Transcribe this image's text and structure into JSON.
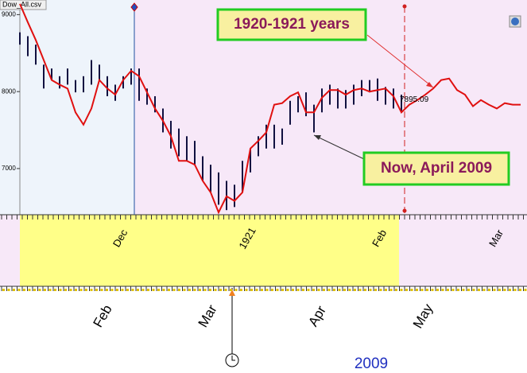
{
  "file_label": "Dow_All.csv",
  "chart_data": {
    "type": "line",
    "annotations": [
      "1920-1921 years",
      "Now, April 2009"
    ],
    "last_price": 7895.09,
    "top_axis_labels": [
      "Dec",
      "1921",
      "Feb",
      "Mar"
    ],
    "bottom_axis_labels": [
      "Feb",
      "Mar",
      "Apr",
      "May"
    ],
    "bottom_axis_year": "2009",
    "ylim": [
      6400,
      9190
    ],
    "yticks": [
      7000,
      8000,
      9000
    ],
    "categories": [
      null,
      null,
      null,
      null,
      null,
      null,
      null,
      null,
      null,
      null,
      null,
      null,
      null,
      null,
      null,
      null,
      null,
      null,
      null,
      null,
      null,
      null,
      null,
      null,
      null,
      null,
      null,
      null,
      null,
      null,
      null,
      null,
      null,
      null,
      null,
      null,
      null,
      null,
      null,
      null,
      null,
      null,
      null,
      null,
      null,
      null,
      null,
      null,
      null,
      null,
      null,
      null,
      null,
      null,
      null,
      null,
      null,
      null,
      null,
      null,
      null,
      null,
      null,
      null
    ],
    "series": [
      {
        "color": "#e01010",
        "values": [
          9140,
          8900,
          8670,
          8410,
          8150,
          8090,
          8040,
          7730,
          7570,
          7780,
          8150,
          8040,
          7960,
          8150,
          8270,
          8200,
          7990,
          7780,
          7620,
          7420,
          7100,
          7100,
          7050,
          6840,
          6690,
          6430,
          6640,
          6580,
          6690,
          7260,
          7360,
          7470,
          7830,
          7850,
          7940,
          7990,
          7730,
          7730,
          7920,
          8020,
          8020,
          7960,
          8020,
          8040,
          8000,
          8020,
          8040,
          7940,
          7730,
          7830,
          7890,
          7960,
          8040,
          8150,
          8170,
          8020,
          7960,
          7810,
          7890,
          7830,
          7780,
          7850,
          7830,
          7830
        ]
      },
      {
        "color": "#101040",
        "high": [
          8770,
          8720,
          8610,
          8350,
          8300,
          8200,
          8300,
          8150,
          8200,
          8410,
          8350,
          8200,
          8090,
          8200,
          8300,
          8300,
          8040,
          7940,
          7780,
          7620,
          7520,
          7420,
          7360,
          7160,
          7050,
          6950,
          6840,
          6790,
          7100,
          7260,
          7420,
          7570,
          7570,
          7520,
          7880,
          7940,
          7990,
          7830,
          8040,
          8090,
          8040,
          8020,
          8090,
          8150,
          8150,
          8170,
          8060,
          8040,
          7960,
          null,
          null,
          null,
          null,
          null,
          null,
          null,
          null,
          null,
          null,
          null,
          null,
          null,
          null,
          null
        ],
        "low": [
          8610,
          8460,
          8350,
          8040,
          8150,
          8040,
          8090,
          7990,
          7990,
          8090,
          8150,
          7940,
          7880,
          8040,
          8090,
          7880,
          7830,
          7730,
          7470,
          7260,
          7160,
          7100,
          7050,
          6840,
          6690,
          6530,
          6460,
          6500,
          6690,
          6950,
          7160,
          7260,
          7260,
          7310,
          7570,
          7730,
          7680,
          7470,
          7730,
          7830,
          7780,
          7780,
          7830,
          7940,
          7990,
          7880,
          7830,
          7780,
          7730,
          null,
          null,
          null,
          null,
          null,
          null,
          null,
          null,
          null,
          null,
          null,
          null,
          null,
          null,
          null
        ]
      }
    ],
    "grid": false
  }
}
